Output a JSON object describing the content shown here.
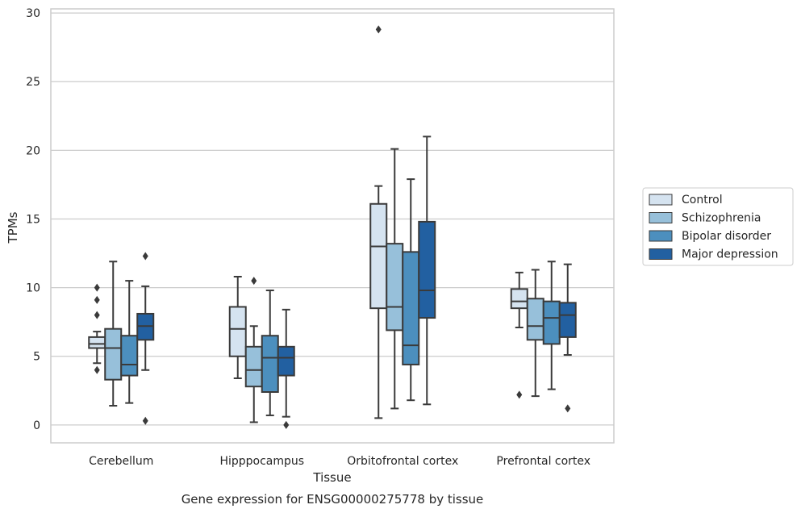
{
  "chart_data": {
    "type": "box",
    "title": "",
    "caption": "Gene expression for ENSG00000275778 by tissue",
    "xlabel": "Tissue",
    "ylabel": "TPMs",
    "ylim": [
      -1.3,
      30.3
    ],
    "yticks": [
      "0",
      "5",
      "10",
      "15",
      "20",
      "25",
      "30"
    ],
    "grid": "horizontal",
    "legend_position": "right",
    "categories": [
      "Cerebellum",
      "Hipppocampus",
      "Orbitofrontal cortex",
      "Prefrontal cortex"
    ],
    "colors": [
      "#d5e3f0",
      "#97c0da",
      "#4c8fbe",
      "#2260a1"
    ],
    "series": [
      {
        "name": "Control",
        "boxes": [
          {
            "min": 4.5,
            "q1": 5.6,
            "median": 5.9,
            "q3": 6.4,
            "max": 6.8,
            "outliers": [
              4.0,
              8.0,
              9.1,
              10.0
            ]
          },
          {
            "min": 3.4,
            "q1": 5.0,
            "median": 7.0,
            "q3": 8.6,
            "max": 10.8,
            "outliers": []
          },
          {
            "min": 0.5,
            "q1": 8.5,
            "median": 13.0,
            "q3": 16.1,
            "max": 17.4,
            "outliers": [
              28.8
            ]
          },
          {
            "min": 7.1,
            "q1": 8.5,
            "median": 9.0,
            "q3": 9.9,
            "max": 11.1,
            "outliers": [
              2.2
            ]
          }
        ]
      },
      {
        "name": "Schizophrenia",
        "boxes": [
          {
            "min": 1.4,
            "q1": 3.3,
            "median": 5.6,
            "q3": 7.0,
            "max": 11.9,
            "outliers": []
          },
          {
            "min": 0.2,
            "q1": 2.8,
            "median": 4.0,
            "q3": 5.7,
            "max": 7.2,
            "outliers": [
              10.5
            ]
          },
          {
            "min": 1.2,
            "q1": 6.9,
            "median": 8.6,
            "q3": 13.2,
            "max": 20.1,
            "outliers": []
          },
          {
            "min": 2.1,
            "q1": 6.2,
            "median": 7.2,
            "q3": 9.2,
            "max": 11.3,
            "outliers": []
          }
        ]
      },
      {
        "name": "Bipolar disorder",
        "boxes": [
          {
            "min": 1.6,
            "q1": 3.6,
            "median": 4.4,
            "q3": 6.5,
            "max": 10.5,
            "outliers": []
          },
          {
            "min": 0.7,
            "q1": 2.4,
            "median": 4.9,
            "q3": 6.5,
            "max": 9.8,
            "outliers": []
          },
          {
            "min": 1.8,
            "q1": 4.4,
            "median": 5.8,
            "q3": 12.6,
            "max": 17.9,
            "outliers": []
          },
          {
            "min": 2.6,
            "q1": 5.9,
            "median": 7.8,
            "q3": 9.0,
            "max": 11.9,
            "outliers": []
          }
        ]
      },
      {
        "name": "Major depression",
        "boxes": [
          {
            "min": 4.0,
            "q1": 6.2,
            "median": 7.2,
            "q3": 8.1,
            "max": 10.1,
            "outliers": [
              0.3,
              12.3
            ]
          },
          {
            "min": 0.6,
            "q1": 3.6,
            "median": 4.9,
            "q3": 5.7,
            "max": 8.4,
            "outliers": [
              0.0
            ]
          },
          {
            "min": 1.5,
            "q1": 7.8,
            "median": 9.8,
            "q3": 14.8,
            "max": 21.0,
            "outliers": []
          },
          {
            "min": 5.1,
            "q1": 6.4,
            "median": 8.0,
            "q3": 8.9,
            "max": 11.7,
            "outliers": [
              1.2
            ]
          }
        ]
      }
    ]
  }
}
